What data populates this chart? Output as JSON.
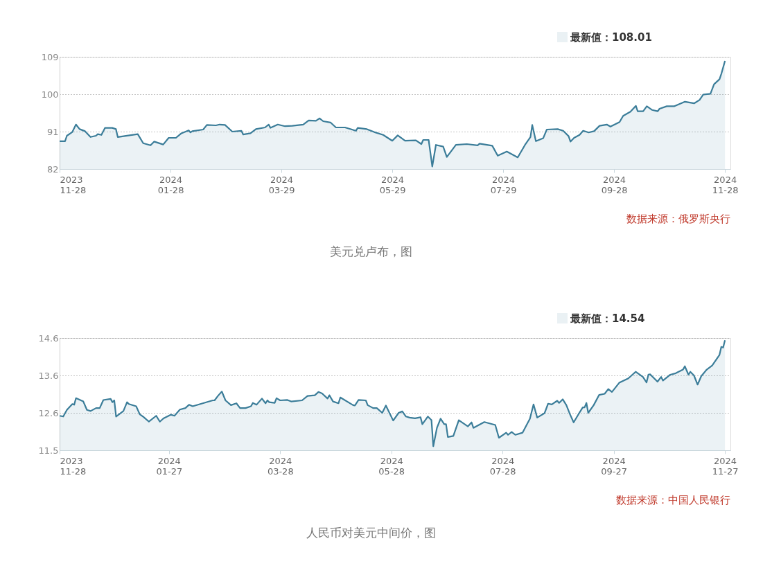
{
  "chart_data": [
    {
      "type": "area",
      "legend": "top right",
      "grid": "y",
      "xlim": [
        "2023-11-28",
        "2024-12-01"
      ],
      "ylim": [
        82,
        109
      ],
      "yticks": [
        82,
        91,
        100,
        109
      ],
      "xticks": [
        {
          "value": "2023-11-28",
          "label": "2023\n11-28"
        },
        {
          "value": "2024-01-28",
          "label": "2024\n01-28"
        },
        {
          "value": "2024-03-29",
          "label": "2024\n03-29"
        },
        {
          "value": "2024-05-29",
          "label": "2024\n05-29"
        },
        {
          "value": "2024-07-29",
          "label": "2024\n07-29"
        },
        {
          "value": "2024-09-28",
          "label": "2024\n09-28"
        },
        {
          "value": "2024-11-28",
          "label": "2024\n11-28"
        }
      ],
      "annotations": [
        "数据来源：俄罗斯央行",
        "美元兑卢布，图"
      ],
      "x": [
        "2023-11-28",
        "2023-12-01",
        "2023-12-02",
        "2023-12-05",
        "2023-12-07",
        "2023-12-09",
        "2023-12-12",
        "2023-12-15",
        "2023-12-18",
        "2023-12-19",
        "2023-12-21",
        "2023-12-23",
        "2023-12-27",
        "2023-12-29",
        "2023-12-30",
        "2024-01-10",
        "2024-01-13",
        "2024-01-17",
        "2024-01-19",
        "2024-01-24",
        "2024-01-27",
        "2024-01-31",
        "2024-02-03",
        "2024-02-07",
        "2024-02-08",
        "2024-02-09",
        "2024-02-15",
        "2024-02-17",
        "2024-02-22",
        "2024-02-24",
        "2024-02-27",
        "2024-03-02",
        "2024-03-07",
        "2024-03-08",
        "2024-03-12",
        "2024-03-15",
        "2024-03-20",
        "2024-03-22",
        "2024-03-23",
        "2024-03-27",
        "2024-03-31",
        "2024-04-04",
        "2024-04-10",
        "2024-04-13",
        "2024-04-17",
        "2024-04-19",
        "2024-04-21",
        "2024-04-25",
        "2024-04-28",
        "2024-05-03",
        "2024-05-09",
        "2024-05-10",
        "2024-05-15",
        "2024-05-19",
        "2024-05-24",
        "2024-05-29",
        "2024-06-01",
        "2024-06-05",
        "2024-06-11",
        "2024-06-14",
        "2024-06-15",
        "2024-06-18",
        "2024-06-20",
        "2024-06-22",
        "2024-06-26",
        "2024-06-28",
        "2024-07-03",
        "2024-07-09",
        "2024-07-15",
        "2024-07-16",
        "2024-07-23",
        "2024-07-26",
        "2024-07-31",
        "2024-08-06",
        "2024-08-10",
        "2024-08-13",
        "2024-08-14",
        "2024-08-16",
        "2024-08-20",
        "2024-08-22",
        "2024-08-28",
        "2024-08-31",
        "2024-09-03",
        "2024-09-04",
        "2024-09-06",
        "2024-09-09",
        "2024-09-11",
        "2024-09-14",
        "2024-09-17",
        "2024-09-20",
        "2024-09-24",
        "2024-09-26",
        "2024-10-01",
        "2024-10-03",
        "2024-10-07",
        "2024-10-10",
        "2024-10-11",
        "2024-10-14",
        "2024-10-16",
        "2024-10-19",
        "2024-10-22",
        "2024-10-23",
        "2024-10-27",
        "2024-10-31",
        "2024-11-06",
        "2024-11-11",
        "2024-11-14",
        "2024-11-16",
        "2024-11-20",
        "2024-11-22",
        "2024-11-25",
        "2024-11-26",
        "2024-11-28"
      ],
      "series": [
        {
          "name": "最新值：108.01",
          "color": "#3b7d99",
          "values": [
            88.7,
            88.7,
            90.0,
            90.9,
            92.7,
            91.6,
            91.1,
            89.7,
            90.0,
            90.4,
            90.2,
            91.9,
            91.9,
            91.6,
            89.7,
            90.4,
            88.2,
            87.7,
            88.6,
            87.9,
            89.5,
            89.5,
            90.6,
            91.3,
            90.8,
            91.1,
            91.5,
            92.6,
            92.5,
            92.7,
            92.6,
            91.0,
            91.2,
            90.3,
            90.6,
            91.6,
            92.0,
            92.7,
            91.9,
            92.7,
            92.3,
            92.4,
            92.7,
            93.7,
            93.6,
            94.2,
            93.5,
            93.2,
            92.0,
            92.0,
            91.2,
            91.9,
            91.6,
            90.9,
            90.2,
            88.8,
            90.1,
            88.8,
            88.9,
            88.0,
            89.0,
            89.0,
            82.6,
            87.8,
            87.4,
            84.9,
            87.8,
            88.0,
            87.7,
            88.1,
            87.6,
            85.2,
            86.2,
            84.8,
            87.8,
            89.7,
            92.6,
            88.7,
            89.4,
            91.5,
            91.6,
            91.2,
            89.9,
            88.6,
            89.5,
            90.2,
            91.2,
            90.8,
            91.1,
            92.4,
            92.7,
            92.2,
            93.3,
            94.8,
            95.8,
            97.2,
            95.9,
            95.9,
            97.1,
            96.2,
            95.9,
            96.5,
            97.1,
            97.1,
            98.2,
            97.8,
            98.6,
            99.9,
            100.1,
            102.4,
            103.6,
            104.9,
            108.01
          ]
        }
      ]
    },
    {
      "type": "area",
      "legend": "top right",
      "grid": "y",
      "xlim": [
        "2023-11-28",
        "2024-11-30"
      ],
      "ylim": [
        11.54,
        14.6
      ],
      "yticks": [
        {
          "value": 11.54,
          "label": "11.5"
        },
        {
          "value": 12.56,
          "label": "12.6"
        },
        {
          "value": 13.58,
          "label": "13.6"
        },
        14.6
      ],
      "xticks": [
        {
          "value": "2023-11-28",
          "label": "2023\n11-28"
        },
        {
          "value": "2024-01-27",
          "label": "2024\n01-27"
        },
        {
          "value": "2024-03-28",
          "label": "2024\n03-28"
        },
        {
          "value": "2024-05-28",
          "label": "2024\n05-28"
        },
        {
          "value": "2024-07-28",
          "label": "2024\n07-28"
        },
        {
          "value": "2024-09-27",
          "label": "2024\n09-27"
        },
        {
          "value": "2024-11-27",
          "label": "2024\n11-27"
        }
      ],
      "annotations": [
        "数据来源：中国人民银行",
        "人民币对美元中间价，图"
      ],
      "x": [
        "2023-11-28",
        "2023-11-30",
        "2023-12-02",
        "2023-12-05",
        "2023-12-06",
        "2023-12-07",
        "2023-12-11",
        "2023-12-13",
        "2023-12-15",
        "2023-12-18",
        "2023-12-20",
        "2023-12-22",
        "2023-12-26",
        "2023-12-27",
        "2023-12-28",
        "2023-12-29",
        "2024-01-02",
        "2024-01-04",
        "2024-01-05",
        "2024-01-09",
        "2024-01-11",
        "2024-01-13",
        "2024-01-16",
        "2024-01-20",
        "2024-01-22",
        "2024-01-24",
        "2024-01-28",
        "2024-01-30",
        "2024-02-02",
        "2024-02-05",
        "2024-02-07",
        "2024-02-09",
        "2024-02-20",
        "2024-02-21",
        "2024-02-23",
        "2024-02-25",
        "2024-02-27",
        "2024-03-01",
        "2024-03-04",
        "2024-03-06",
        "2024-03-09",
        "2024-03-12",
        "2024-03-13",
        "2024-03-15",
        "2024-03-18",
        "2024-03-20",
        "2024-03-21",
        "2024-03-22",
        "2024-03-25",
        "2024-03-26",
        "2024-03-28",
        "2024-04-01",
        "2024-04-03",
        "2024-04-09",
        "2024-04-12",
        "2024-04-16",
        "2024-04-18",
        "2024-04-20",
        "2024-04-23",
        "2024-04-24",
        "2024-04-26",
        "2024-04-29",
        "2024-04-30",
        "2024-05-07",
        "2024-05-08",
        "2024-05-10",
        "2024-05-14",
        "2024-05-15",
        "2024-05-18",
        "2024-05-20",
        "2024-05-23",
        "2024-05-25",
        "2024-05-29",
        "2024-06-01",
        "2024-06-03",
        "2024-06-05",
        "2024-06-07",
        "2024-06-10",
        "2024-06-13",
        "2024-06-14",
        "2024-06-17",
        "2024-06-19",
        "2024-06-20",
        "2024-06-22",
        "2024-06-24",
        "2024-06-26",
        "2024-06-27",
        "2024-06-28",
        "2024-07-01",
        "2024-07-04",
        "2024-07-09",
        "2024-07-11",
        "2024-07-12",
        "2024-07-18",
        "2024-07-24",
        "2024-07-26",
        "2024-07-30",
        "2024-07-31",
        "2024-08-02",
        "2024-08-04",
        "2024-08-08",
        "2024-08-12",
        "2024-08-14",
        "2024-08-16",
        "2024-08-20",
        "2024-08-22",
        "2024-08-24",
        "2024-08-27",
        "2024-08-28",
        "2024-08-30",
        "2024-09-01",
        "2024-09-03",
        "2024-09-05",
        "2024-09-08",
        "2024-09-10",
        "2024-09-11",
        "2024-09-12",
        "2024-09-13",
        "2024-09-16",
        "2024-09-19",
        "2024-09-22",
        "2024-09-24",
        "2024-09-26",
        "2024-09-30",
        "2024-10-05",
        "2024-10-09",
        "2024-10-13",
        "2024-10-15",
        "2024-10-16",
        "2024-10-17",
        "2024-10-21",
        "2024-10-23",
        "2024-10-24",
        "2024-10-28",
        "2024-10-31",
        "2024-11-04",
        "2024-11-05",
        "2024-11-07",
        "2024-11-08",
        "2024-11-10",
        "2024-11-12",
        "2024-11-14",
        "2024-11-17",
        "2024-11-20",
        "2024-11-24",
        "2024-11-25",
        "2024-11-26",
        "2024-11-27"
      ],
      "series": [
        {
          "name": "最新值：14.54",
          "color": "#3b7d99",
          "values": [
            12.48,
            12.46,
            12.64,
            12.8,
            12.78,
            12.96,
            12.87,
            12.64,
            12.61,
            12.69,
            12.69,
            12.91,
            12.94,
            12.85,
            12.9,
            12.46,
            12.61,
            12.85,
            12.8,
            12.74,
            12.52,
            12.45,
            12.32,
            12.48,
            12.32,
            12.41,
            12.51,
            12.48,
            12.65,
            12.69,
            12.78,
            12.74,
            12.9,
            12.9,
            13.03,
            13.14,
            12.9,
            12.77,
            12.82,
            12.69,
            12.69,
            12.74,
            12.83,
            12.78,
            12.95,
            12.82,
            12.9,
            12.85,
            12.83,
            12.96,
            12.9,
            12.91,
            12.87,
            12.9,
            13.02,
            13.04,
            13.13,
            13.09,
            12.95,
            13.04,
            12.87,
            12.82,
            12.98,
            12.77,
            12.76,
            12.91,
            12.9,
            12.77,
            12.69,
            12.69,
            12.56,
            12.76,
            12.35,
            12.56,
            12.6,
            12.46,
            12.43,
            12.41,
            12.44,
            12.25,
            12.46,
            12.36,
            11.65,
            12.15,
            12.4,
            12.25,
            12.25,
            11.9,
            11.93,
            12.36,
            12.19,
            12.3,
            12.15,
            12.31,
            12.23,
            11.88,
            12.02,
            11.96,
            12.04,
            11.96,
            12.02,
            12.4,
            12.79,
            12.43,
            12.55,
            12.81,
            12.79,
            12.89,
            12.83,
            12.93,
            12.77,
            12.52,
            12.3,
            12.55,
            12.71,
            12.71,
            12.83,
            12.56,
            12.77,
            13.05,
            13.08,
            13.21,
            13.13,
            13.38,
            13.5,
            13.68,
            13.54,
            13.39,
            13.6,
            13.61,
            13.41,
            13.54,
            13.44,
            13.6,
            13.64,
            13.74,
            13.83,
            13.6,
            13.68,
            13.58,
            13.33,
            13.56,
            13.74,
            13.85,
            14.14,
            14.36,
            14.34,
            14.54
          ]
        }
      ]
    }
  ]
}
